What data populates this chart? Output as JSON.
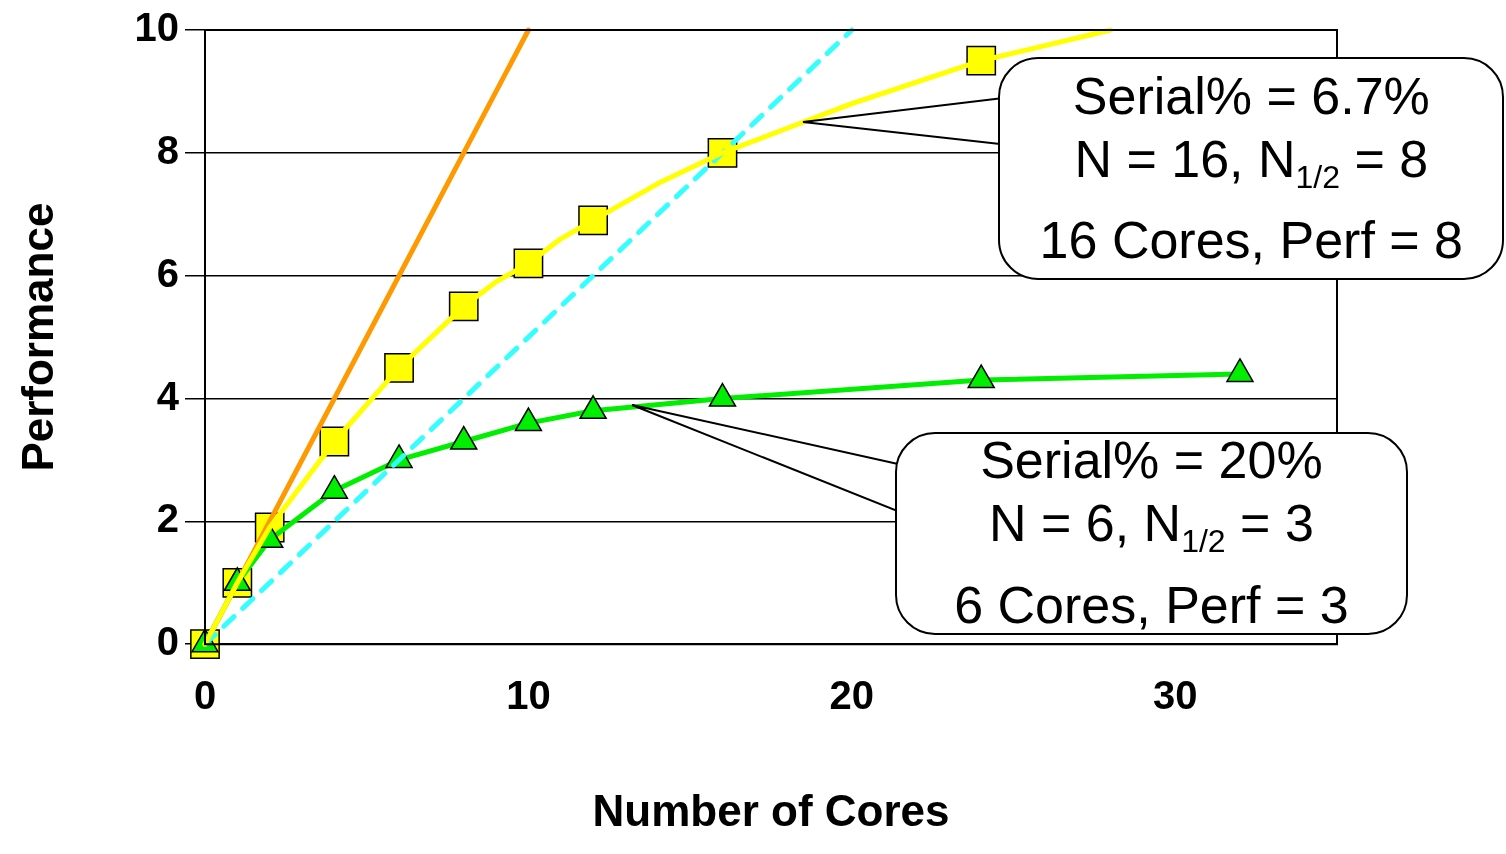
{
  "chart_data": {
    "type": "line",
    "xlabel": "Number of Cores",
    "ylabel": "Performance",
    "xlim": [
      0,
      35
    ],
    "xticks": [
      0,
      10,
      20,
      30
    ],
    "ylim": [
      0,
      10
    ],
    "yticks": [
      0,
      2,
      4,
      6,
      8,
      10
    ],
    "grid": "y",
    "legend": false,
    "series": [
      {
        "type": "line",
        "color": "#ff9900",
        "x": [
          0,
          10
        ],
        "values": [
          0,
          10
        ],
        "marker": "none",
        "line_style": "solid"
      },
      {
        "type": "line",
        "color": "#33ffff",
        "x": [
          0,
          20
        ],
        "values": [
          0,
          10
        ],
        "marker": "none",
        "line_style": "dashed"
      },
      {
        "type": "line",
        "color": "#ffff00",
        "x": [
          0,
          1,
          2,
          3,
          4,
          5,
          6,
          7,
          8,
          9,
          10,
          11,
          12,
          14,
          16,
          18,
          20,
          24,
          28
        ],
        "values": [
          0,
          1,
          1.9,
          2.6,
          3.3,
          3.9,
          4.5,
          5.0,
          5.5,
          5.9,
          6.2,
          6.6,
          6.9,
          7.5,
          8.0,
          8.4,
          8.8,
          9.5,
          10.0
        ],
        "marker": "none",
        "line_style": "solid"
      },
      {
        "type": "scatter",
        "color": "#ffff00",
        "x": [
          0,
          1,
          2,
          4,
          6,
          8,
          10,
          12,
          16,
          24
        ],
        "values": [
          0,
          1,
          1.9,
          3.3,
          4.5,
          5.5,
          6.2,
          6.9,
          8.0,
          9.5
        ],
        "marker": "square"
      },
      {
        "type": "line",
        "color": "#00ee00",
        "x": [
          0,
          1,
          2,
          4,
          6,
          8,
          10,
          12,
          16,
          24,
          32
        ],
        "values": [
          0,
          1,
          1.7,
          2.5,
          3.0,
          3.3,
          3.6,
          3.8,
          4.0,
          4.3,
          4.4
        ],
        "marker": "triangle",
        "line_style": "solid"
      }
    ],
    "annotations": [
      {
        "text": "Serial% = 6.7%\nN = 16, N$_{1/2}$ = 8\n16 Cores, Perf = 8",
        "x": 18.5,
        "y": 8.5
      },
      {
        "text": "Serial% = 20%\nN = 6, N$_{1/2}$ = 3\n6 Cores, Perf = 3",
        "x": 13.2,
        "y": 3.9
      }
    ]
  }
}
